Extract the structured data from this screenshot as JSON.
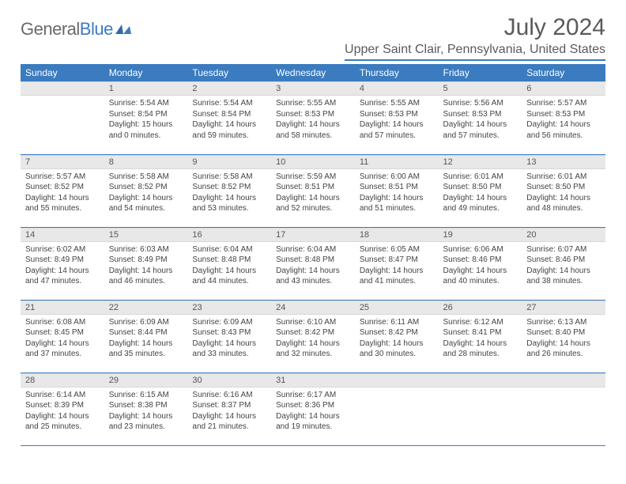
{
  "logo": {
    "text1": "General",
    "text2": "Blue"
  },
  "title": "July 2024",
  "location": "Upper Saint Clair, Pennsylvania, United States",
  "colors": {
    "headerBar": "#3b7bbf",
    "headerText": "#ffffff",
    "dayStrip": "#e8e8e8",
    "bodyText": "#444444",
    "logoGray": "#6a6a6a",
    "logoBlue": "#3b7bbf",
    "rowBorder": "#3b7bbf"
  },
  "weekdays": [
    "Sunday",
    "Monday",
    "Tuesday",
    "Wednesday",
    "Thursday",
    "Friday",
    "Saturday"
  ],
  "weeks": [
    [
      null,
      {
        "d": "1",
        "sr": "5:54 AM",
        "ss": "8:54 PM",
        "dl": "15 hours and 0 minutes."
      },
      {
        "d": "2",
        "sr": "5:54 AM",
        "ss": "8:54 PM",
        "dl": "14 hours and 59 minutes."
      },
      {
        "d": "3",
        "sr": "5:55 AM",
        "ss": "8:53 PM",
        "dl": "14 hours and 58 minutes."
      },
      {
        "d": "4",
        "sr": "5:55 AM",
        "ss": "8:53 PM",
        "dl": "14 hours and 57 minutes."
      },
      {
        "d": "5",
        "sr": "5:56 AM",
        "ss": "8:53 PM",
        "dl": "14 hours and 57 minutes."
      },
      {
        "d": "6",
        "sr": "5:57 AM",
        "ss": "8:53 PM",
        "dl": "14 hours and 56 minutes."
      }
    ],
    [
      {
        "d": "7",
        "sr": "5:57 AM",
        "ss": "8:52 PM",
        "dl": "14 hours and 55 minutes."
      },
      {
        "d": "8",
        "sr": "5:58 AM",
        "ss": "8:52 PM",
        "dl": "14 hours and 54 minutes."
      },
      {
        "d": "9",
        "sr": "5:58 AM",
        "ss": "8:52 PM",
        "dl": "14 hours and 53 minutes."
      },
      {
        "d": "10",
        "sr": "5:59 AM",
        "ss": "8:51 PM",
        "dl": "14 hours and 52 minutes."
      },
      {
        "d": "11",
        "sr": "6:00 AM",
        "ss": "8:51 PM",
        "dl": "14 hours and 51 minutes."
      },
      {
        "d": "12",
        "sr": "6:01 AM",
        "ss": "8:50 PM",
        "dl": "14 hours and 49 minutes."
      },
      {
        "d": "13",
        "sr": "6:01 AM",
        "ss": "8:50 PM",
        "dl": "14 hours and 48 minutes."
      }
    ],
    [
      {
        "d": "14",
        "sr": "6:02 AM",
        "ss": "8:49 PM",
        "dl": "14 hours and 47 minutes."
      },
      {
        "d": "15",
        "sr": "6:03 AM",
        "ss": "8:49 PM",
        "dl": "14 hours and 46 minutes."
      },
      {
        "d": "16",
        "sr": "6:04 AM",
        "ss": "8:48 PM",
        "dl": "14 hours and 44 minutes."
      },
      {
        "d": "17",
        "sr": "6:04 AM",
        "ss": "8:48 PM",
        "dl": "14 hours and 43 minutes."
      },
      {
        "d": "18",
        "sr": "6:05 AM",
        "ss": "8:47 PM",
        "dl": "14 hours and 41 minutes."
      },
      {
        "d": "19",
        "sr": "6:06 AM",
        "ss": "8:46 PM",
        "dl": "14 hours and 40 minutes."
      },
      {
        "d": "20",
        "sr": "6:07 AM",
        "ss": "8:46 PM",
        "dl": "14 hours and 38 minutes."
      }
    ],
    [
      {
        "d": "21",
        "sr": "6:08 AM",
        "ss": "8:45 PM",
        "dl": "14 hours and 37 minutes."
      },
      {
        "d": "22",
        "sr": "6:09 AM",
        "ss": "8:44 PM",
        "dl": "14 hours and 35 minutes."
      },
      {
        "d": "23",
        "sr": "6:09 AM",
        "ss": "8:43 PM",
        "dl": "14 hours and 33 minutes."
      },
      {
        "d": "24",
        "sr": "6:10 AM",
        "ss": "8:42 PM",
        "dl": "14 hours and 32 minutes."
      },
      {
        "d": "25",
        "sr": "6:11 AM",
        "ss": "8:42 PM",
        "dl": "14 hours and 30 minutes."
      },
      {
        "d": "26",
        "sr": "6:12 AM",
        "ss": "8:41 PM",
        "dl": "14 hours and 28 minutes."
      },
      {
        "d": "27",
        "sr": "6:13 AM",
        "ss": "8:40 PM",
        "dl": "14 hours and 26 minutes."
      }
    ],
    [
      {
        "d": "28",
        "sr": "6:14 AM",
        "ss": "8:39 PM",
        "dl": "14 hours and 25 minutes."
      },
      {
        "d": "29",
        "sr": "6:15 AM",
        "ss": "8:38 PM",
        "dl": "14 hours and 23 minutes."
      },
      {
        "d": "30",
        "sr": "6:16 AM",
        "ss": "8:37 PM",
        "dl": "14 hours and 21 minutes."
      },
      {
        "d": "31",
        "sr": "6:17 AM",
        "ss": "8:36 PM",
        "dl": "14 hours and 19 minutes."
      },
      null,
      null,
      null
    ]
  ],
  "labels": {
    "sunrise": "Sunrise: ",
    "sunset": "Sunset: ",
    "daylight": "Daylight: "
  }
}
